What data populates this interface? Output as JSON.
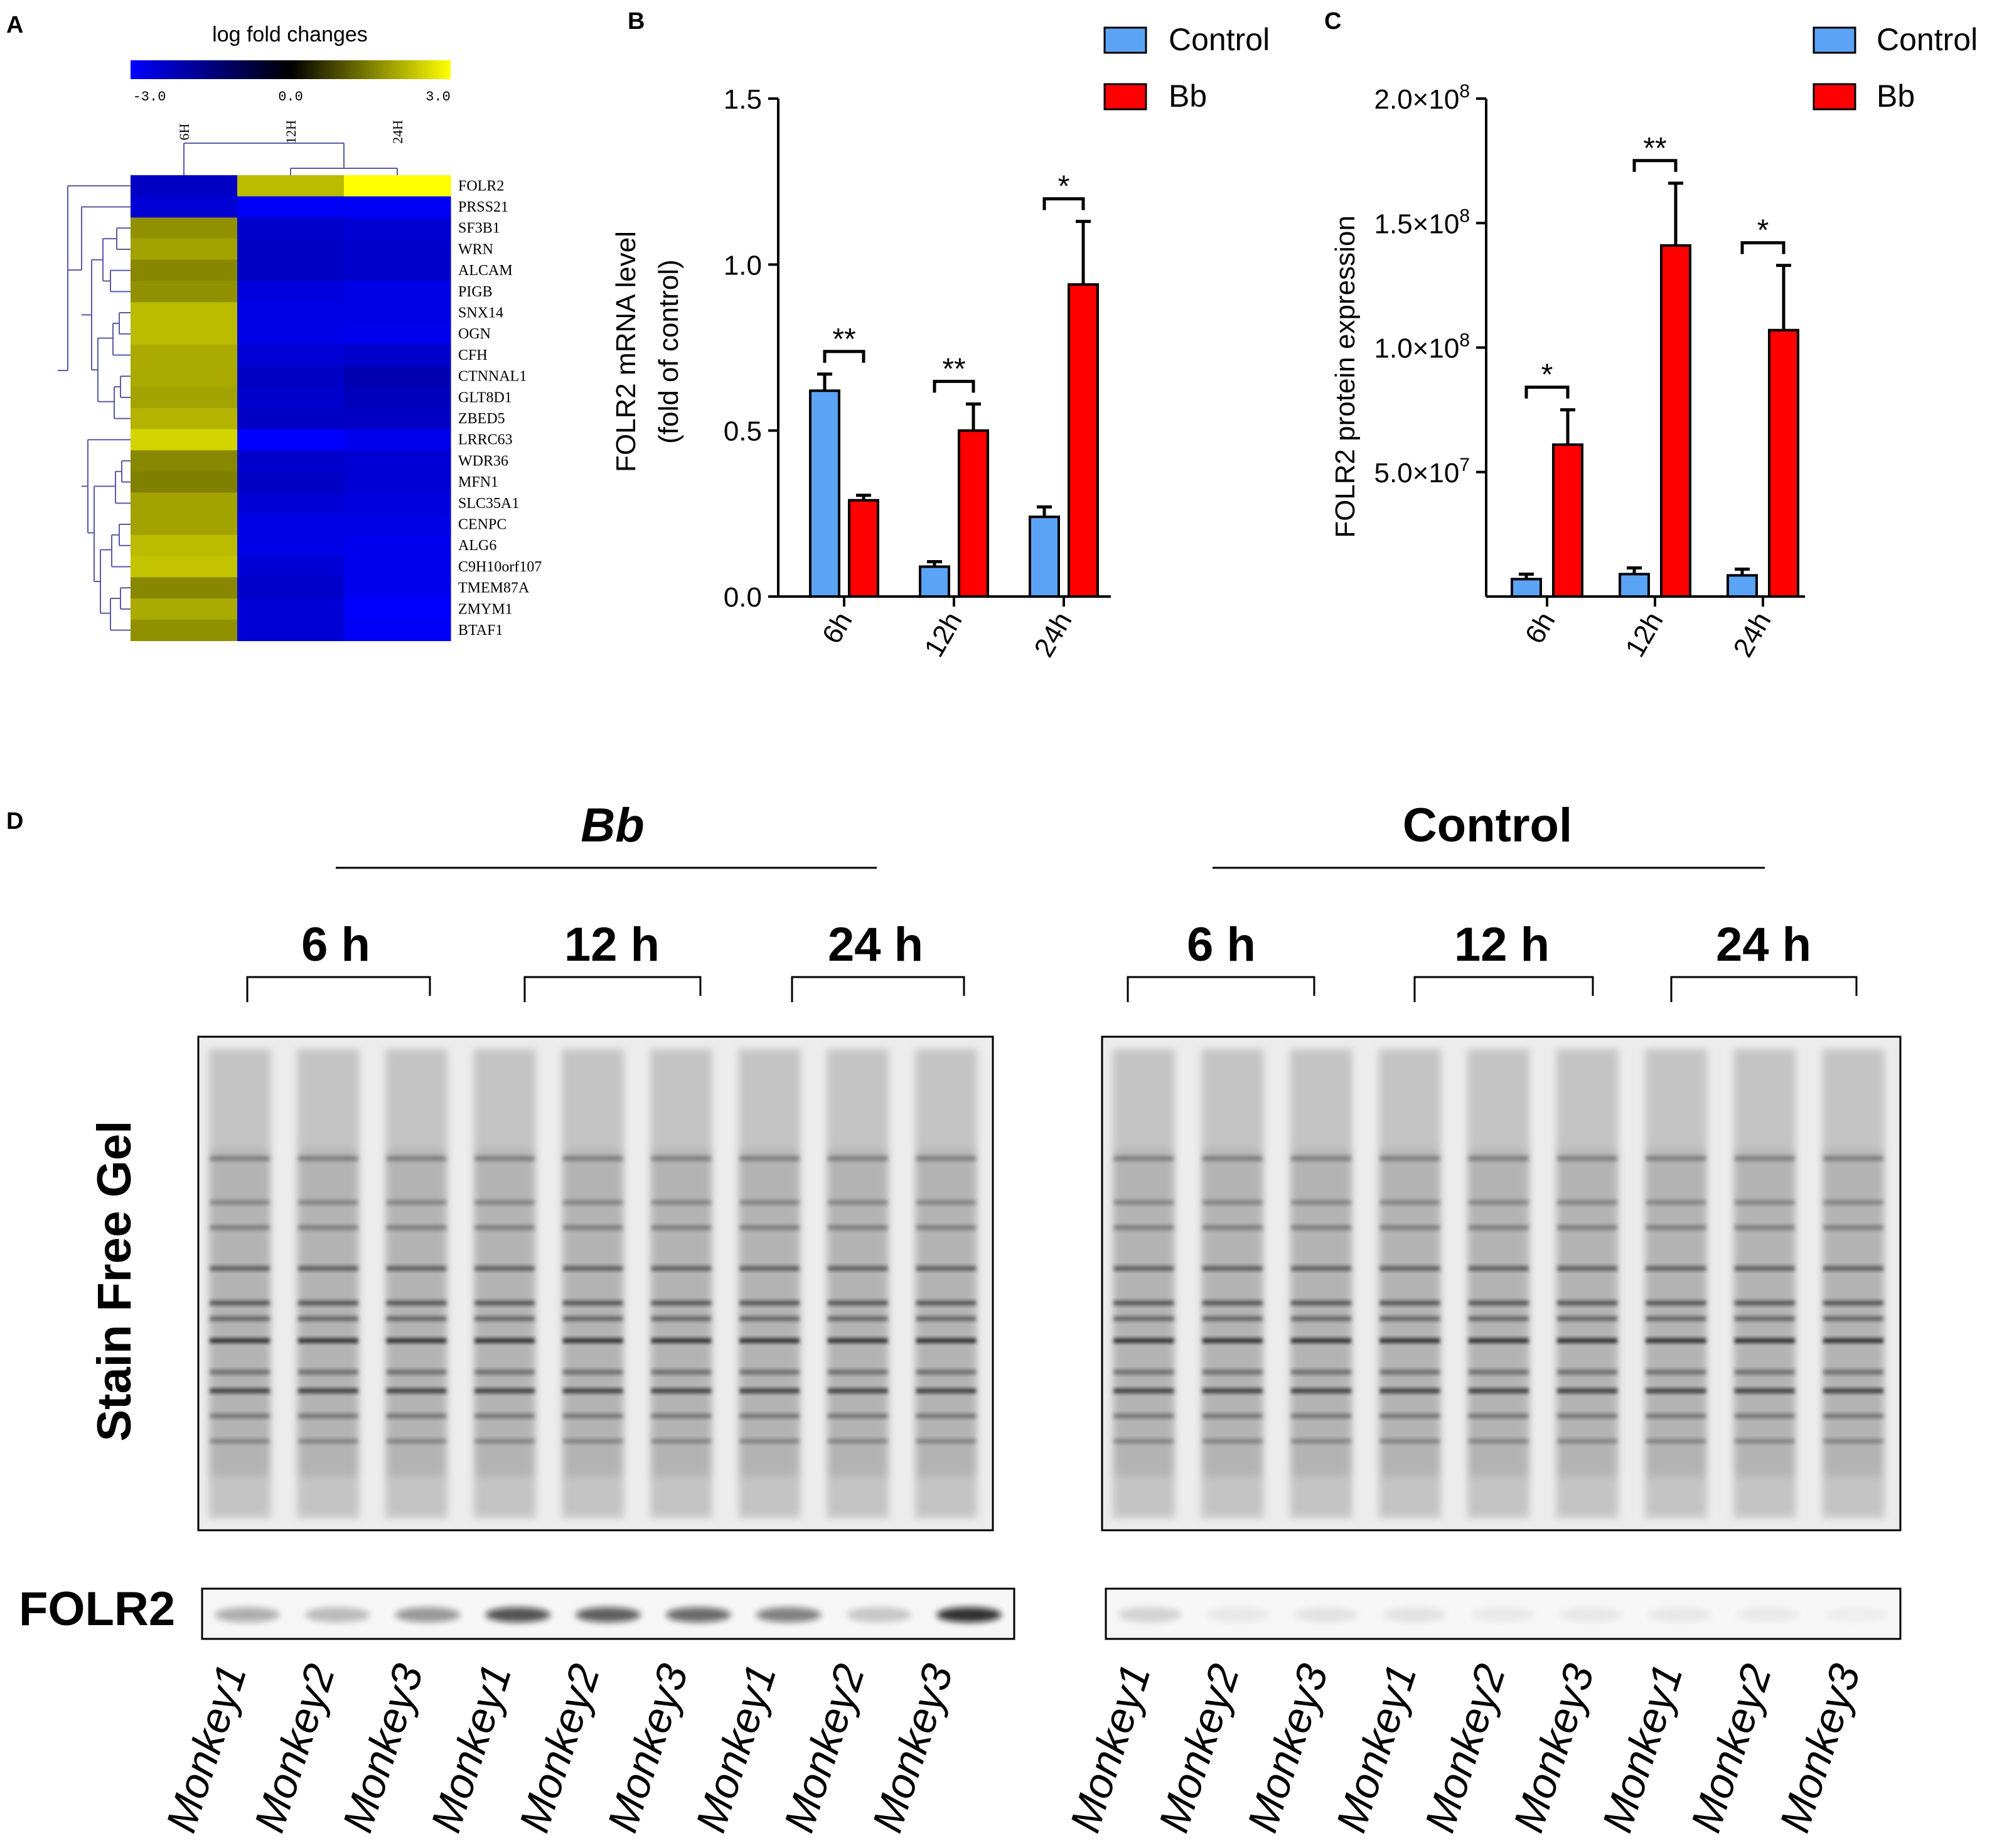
{
  "panels": {
    "a": "A",
    "b": "B",
    "c": "C",
    "d": "D"
  },
  "chart_data": [
    {
      "type": "heatmap",
      "title": "log fold changes",
      "colorbar_ticks": [
        "-3.0",
        "0.0",
        "3.0"
      ],
      "colors": {
        "low": "#0000ff",
        "mid": "#000000",
        "high": "#ffff00"
      },
      "columns": [
        "6H",
        "12H",
        "24H"
      ],
      "rows": [
        "FOLR2",
        "PRSS21",
        "SF3B1",
        "WRN",
        "ALCAM",
        "PIGB",
        "SNX14",
        "OGN",
        "CFH",
        "CTNNAL1",
        "GLT8D1",
        "ZBED5",
        "LRRC63",
        "WDR36",
        "MFN1",
        "SLC35A1",
        "CENPC",
        "ALG6",
        "C9H10orf107",
        "TMEM87A",
        "ZMYM1",
        "BTAF1"
      ],
      "values": [
        [
          -2.3,
          2.2,
          3.0
        ],
        [
          -2.5,
          -2.9,
          -2.9
        ],
        [
          1.7,
          -2.4,
          -2.5
        ],
        [
          1.9,
          -2.3,
          -2.4
        ],
        [
          1.6,
          -2.3,
          -2.4
        ],
        [
          1.7,
          -2.6,
          -2.7
        ],
        [
          2.2,
          -2.7,
          -2.7
        ],
        [
          2.2,
          -2.7,
          -2.8
        ],
        [
          2.0,
          -2.5,
          -2.4
        ],
        [
          2.0,
          -2.3,
          -2.1
        ],
        [
          1.9,
          -2.4,
          -2.2
        ],
        [
          2.1,
          -2.3,
          -2.3
        ],
        [
          2.5,
          -3.0,
          -2.8
        ],
        [
          1.6,
          -2.4,
          -2.5
        ],
        [
          1.5,
          -2.3,
          -2.5
        ],
        [
          1.9,
          -2.5,
          -2.6
        ],
        [
          1.9,
          -2.7,
          -2.7
        ],
        [
          2.2,
          -2.7,
          -2.8
        ],
        [
          2.3,
          -2.5,
          -2.8
        ],
        [
          1.6,
          -2.4,
          -2.8
        ],
        [
          2.0,
          -2.5,
          -3.0
        ],
        [
          1.7,
          -2.5,
          -2.9
        ]
      ]
    },
    {
      "type": "bar",
      "categories": [
        "6h",
        "12h",
        "24h"
      ],
      "ylabel_line1": "FOLR2 mRNA level",
      "ylabel_line2": "(fold of control)",
      "ylim": [
        0,
        1.5
      ],
      "yticks": [
        "0.0",
        "0.5",
        "1.0",
        "1.5"
      ],
      "series": [
        {
          "name": "Control",
          "color": "#5aa3f5",
          "values": [
            0.62,
            0.09,
            0.24
          ],
          "errors": [
            0.05,
            0.015,
            0.03
          ]
        },
        {
          "name": "Bb",
          "color": "#ff0000",
          "values": [
            0.29,
            0.5,
            0.94
          ],
          "errors": [
            0.015,
            0.08,
            0.19
          ]
        }
      ],
      "significance": [
        "**",
        "**",
        "*"
      ]
    },
    {
      "type": "bar",
      "categories": [
        "6h",
        "12h",
        "24h"
      ],
      "ylabel": "FOLR2 protein expression",
      "ylim": [
        0,
        200000000
      ],
      "yticks": [
        {
          "mant": "5.0×10",
          "exp": "7",
          "value": 50000000
        },
        {
          "mant": "1.0×10",
          "exp": "8",
          "value": 100000000
        },
        {
          "mant": "1.5×10",
          "exp": "8",
          "value": 150000000
        },
        {
          "mant": "2.0×10",
          "exp": "8",
          "value": 200000000
        }
      ],
      "series": [
        {
          "name": "Control",
          "color": "#5aa3f5",
          "values": [
            7000000,
            9000000,
            8500000
          ],
          "errors": [
            2000000,
            2500000,
            2500000
          ]
        },
        {
          "name": "Bb",
          "color": "#ff0000",
          "values": [
            61000000,
            141000000,
            107000000
          ],
          "errors": [
            14000000,
            25000000,
            26000000
          ]
        }
      ],
      "significance": [
        "*",
        "**",
        "*"
      ]
    }
  ],
  "blot": {
    "row_label_gel": "Stain Free Gel",
    "row_label_folr2": "FOLR2",
    "groups": [
      {
        "title": "Bb",
        "timepoints": [
          "6 h",
          "12 h",
          "24 h"
        ],
        "monkeys": [
          "Monkey1",
          "Monkey2",
          "Monkey3",
          "Monkey1",
          "Monkey2",
          "Monkey3",
          "Monkey1",
          "Monkey2",
          "Monkey3"
        ],
        "folr2_intensity": [
          0.3,
          0.25,
          0.4,
          0.7,
          0.65,
          0.6,
          0.5,
          0.2,
          0.85
        ]
      },
      {
        "title": "Control",
        "timepoints": [
          "6 h",
          "12 h",
          "24 h"
        ],
        "monkeys": [
          "Monkey1",
          "Monkey2",
          "Monkey3",
          "Monkey1",
          "Monkey2",
          "Monkey3",
          "Monkey1",
          "Monkey2",
          "Monkey3"
        ],
        "folr2_intensity": [
          0.15,
          0.06,
          0.08,
          0.08,
          0.05,
          0.06,
          0.06,
          0.05,
          0.03
        ]
      }
    ]
  }
}
